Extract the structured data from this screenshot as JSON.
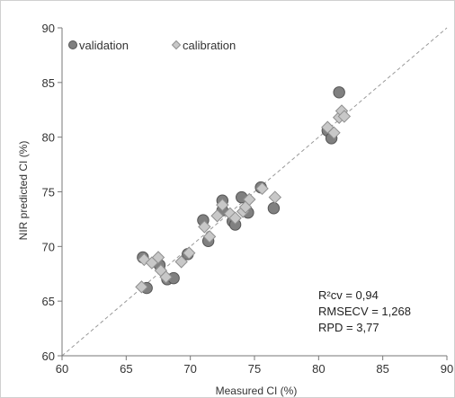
{
  "chart_data": {
    "type": "scatter",
    "xlabel": "Measured CI (%)",
    "ylabel": "NIR predicted CI (%)",
    "xlim": [
      60,
      90
    ],
    "ylim": [
      60,
      90
    ],
    "x_ticks": [
      "60",
      "65",
      "70",
      "75",
      "80",
      "85",
      "90"
    ],
    "y_ticks": [
      "60",
      "65",
      "70",
      "75",
      "80",
      "85",
      "90"
    ],
    "grid": false,
    "legend_position": "top-left",
    "reference_line": "y = x (dashed)",
    "series": [
      {
        "name": "validation",
        "marker": "circle",
        "color": "#808080",
        "points": [
          [
            66.3,
            69.0
          ],
          [
            66.6,
            66.2
          ],
          [
            67.6,
            68.3
          ],
          [
            68.2,
            67.0
          ],
          [
            68.7,
            67.1
          ],
          [
            69.8,
            69.3
          ],
          [
            71.0,
            72.4
          ],
          [
            71.4,
            70.5
          ],
          [
            72.5,
            74.2
          ],
          [
            72.5,
            73.3
          ],
          [
            73.3,
            72.3
          ],
          [
            73.5,
            72.0
          ],
          [
            74.0,
            74.5
          ],
          [
            74.5,
            73.1
          ],
          [
            75.5,
            75.4
          ],
          [
            76.5,
            73.5
          ],
          [
            80.7,
            80.6
          ],
          [
            81.0,
            79.9
          ],
          [
            81.6,
            84.1
          ]
        ]
      },
      {
        "name": "calibration",
        "marker": "diamond",
        "color": "#c8c8c8",
        "points": [
          [
            66.2,
            66.3
          ],
          [
            66.4,
            68.8
          ],
          [
            67.0,
            68.5
          ],
          [
            67.5,
            69.0
          ],
          [
            67.7,
            67.8
          ],
          [
            68.1,
            67.2
          ],
          [
            69.3,
            68.6
          ],
          [
            69.9,
            69.4
          ],
          [
            71.1,
            71.8
          ],
          [
            71.5,
            70.9
          ],
          [
            72.1,
            72.8
          ],
          [
            72.5,
            73.8
          ],
          [
            73.1,
            73.0
          ],
          [
            73.5,
            72.6
          ],
          [
            74.1,
            73.2
          ],
          [
            74.3,
            73.6
          ],
          [
            74.6,
            74.3
          ],
          [
            75.6,
            75.3
          ],
          [
            76.6,
            74.5
          ],
          [
            80.7,
            80.9
          ],
          [
            81.2,
            80.4
          ],
          [
            81.6,
            81.8
          ],
          [
            81.8,
            82.4
          ],
          [
            82.0,
            81.9
          ]
        ]
      }
    ],
    "annotations": [
      "R²cv = 0,94",
      "RMSECV = 1,268",
      "RPD = 3,77"
    ]
  },
  "colors": {
    "axis": "#777777",
    "reference_line": "#999999",
    "validation_fill": "#808080",
    "validation_stroke": "#555555",
    "calibration_fill": "#c8c8c8",
    "calibration_stroke": "#8f8f8f"
  }
}
